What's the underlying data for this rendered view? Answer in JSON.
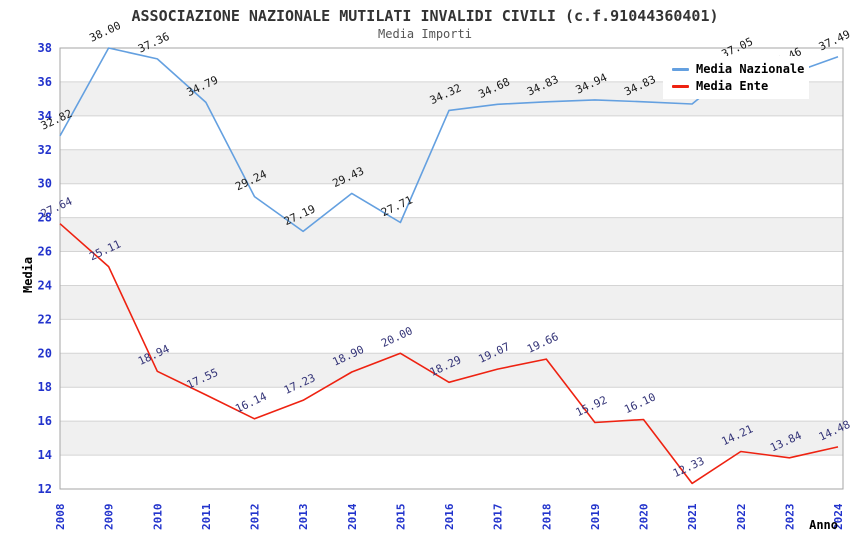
{
  "title": "ASSOCIAZIONE NAZIONALE MUTILATI INVALIDI CIVILI (c.f.91044360401)",
  "subtitle": "Media Importi",
  "legend": [
    {
      "label": "Media Nazionale",
      "color": "#64a0e0"
    },
    {
      "label": "Media Ente",
      "color": "#ee2211"
    }
  ],
  "colors": {
    "axis_tick_label": "#2233cc",
    "band_gray": "#f0f0f0",
    "gridline": "#d4d4d4",
    "frame": "#a6a6a6",
    "title": "#333333",
    "subtitle": "#555555",
    "blue_point_label": "#1a1a1a",
    "red_point_label": "#333377"
  },
  "chart_data": {
    "type": "line",
    "title": "ASSOCIAZIONE NAZIONALE MUTILATI INVALIDI CIVILI (c.f.91044360401)",
    "subtitle": "Media Importi",
    "xlabel": "Anno",
    "ylabel": "Media",
    "x": [
      "2008",
      "2009",
      "2010",
      "2011",
      "2012",
      "2013",
      "2014",
      "2015",
      "2016",
      "2017",
      "2018",
      "2019",
      "2020",
      "2021",
      "2022",
      "2023",
      "2024"
    ],
    "ylim": [
      12,
      38
    ],
    "ytick_step": 2,
    "grid": "horizontal-bands-alternating",
    "legend_position": "top-right-inside",
    "series": [
      {
        "name": "Media Nazionale",
        "color": "#64a0e0",
        "label_color": "#1a1a1a",
        "values": [
          32.82,
          38.0,
          37.36,
          34.79,
          29.24,
          27.19,
          29.43,
          27.71,
          34.32,
          34.68,
          34.83,
          34.94,
          34.83,
          34.7,
          37.05,
          36.46,
          37.49
        ],
        "labels": [
          "32.82",
          "38.00",
          "37.36",
          "34.79",
          "29.24",
          "27.19",
          "29.43",
          "27.71",
          "34.32",
          "34.68",
          "34.83",
          "34.94",
          "34.83",
          "",
          "37.05",
          "36.46",
          "37.49"
        ]
      },
      {
        "name": "Media Ente",
        "color": "#ee2211",
        "label_color": "#333377",
        "values": [
          27.64,
          25.11,
          18.94,
          17.55,
          16.14,
          17.23,
          18.9,
          20.0,
          18.29,
          19.07,
          19.66,
          15.92,
          16.1,
          12.33,
          14.21,
          13.84,
          14.48
        ],
        "labels": [
          "27.64",
          "25.11",
          "18.94",
          "17.55",
          "16.14",
          "17.23",
          "18.90",
          "20.00",
          "18.29",
          "19.07",
          "19.66",
          "15.92",
          "16.10",
          "12.33",
          "14.21",
          "13.84",
          "14.48"
        ]
      }
    ]
  }
}
